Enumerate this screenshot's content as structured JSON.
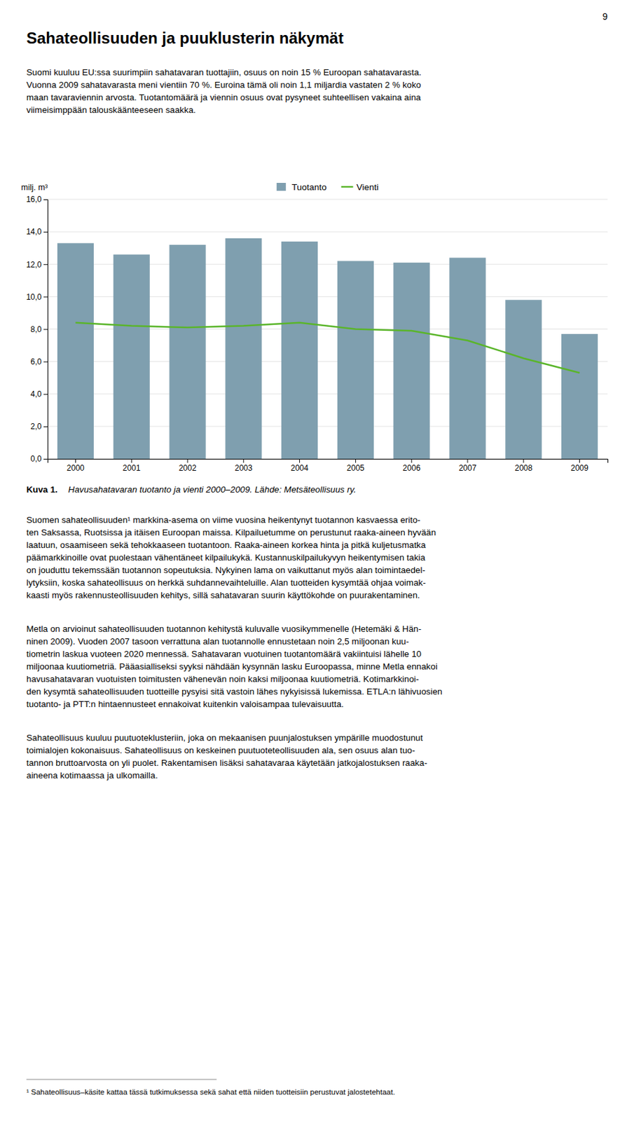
{
  "page_number": "9",
  "page_title": "Sahateollisuuden ja puuklusterin näkymät",
  "paragraphs": [
    [
      "Suomi kuuluu EU:ssa suurimpiin sahatavaran tuottajiin, osuus on noin 15 % Euroopan sahatavarasta.",
      "Vuonna 2009 sahatavarasta meni vientiin 70 %. Euroina tämä oli noin 1,1 miljardia vastaten 2 % koko",
      "maan tavaraviennin arvosta. Tuotantomäärä ja viennin osuus ovat pysyneet suhteellisen vakaina aina",
      "viimeisimppään talouskäänteeseen saakka."
    ],
    [
      "Suomen sahateollisuuden¹ markkina-asema on viime vuosina heikentynyt tuotannon kasvaessa erito-",
      "ten Saksassa, Ruotsissa ja itäisen Euroopan maissa. Kilpailuetumme on perustunut raaka-aineen hyvään",
      "laatuun, osaamiseen sekä tehokkaaseen tuotantoon. Raaka-aineen korkea hinta ja pitkä kuljetusmatka",
      "päämarkkinoille ovat puolestaan vähentäneet kilpailukykä. Kustannuskilpailukyvyn heikentymisen takia",
      "on jouduttu tekemssään tuotannon sopeutuksia. Nykyinen lama on vaikuttanut myös alan toimintaedel-",
      "lytyksiin, koska sahateollisuus on herkkä suhdannevaihteluille. Alan tuotteiden kysymtää ohjaa voimak-",
      "kaasti myös rakennusteollisuuden kehitys, sillä sahatavaran suurin käyttökohde on puurakentaminen."
    ],
    [
      "Metla on arvioinut sahateollisuuden tuotannon kehitystä kuluvalle vuosikymmenelle (Hetemäki & Hän-",
      "ninen 2009). Vuoden 2007 tasoon verrattuna alan tuotannolle ennustetaan noin 2,5 miljoonan kuu-",
      "tiometrin laskua vuoteen 2020 mennessä. Sahatavaran vuotuinen tuotantomäärä vakiintuisi lähelle 10",
      "miljoonaa kuutiometriä. Pääasialliseksi syyksi nähdään kysynnän lasku Euroopassa, minne Metla ennakoi",
      "havusahatavaran vuotuisten toimitusten vähenevän noin kaksi miljoonaa kuutiometriä. Kotimarkkinoi-",
      "den kysymtä sahateollisuuden tuotteille pysyisi sitä vastoin lähes nykyisissä lukemissa. ETLA:n lähivuosien",
      "tuotanto- ja PTT:n hintaennusteet ennakoivat kuitenkin valoisampaa tulevaisuutta."
    ],
    [
      "Sahateollisuus kuuluu puutuoteklusteriin, joka on mekaanisen puunjalostuksen ympärille muodostunut",
      "toimialojen kokonaisuus. Sahateollisuus on keskeinen puutuoteteollisuuden ala, sen osuus alan tuo-",
      "tannon bruttoarvosta on yli puolet. Rakentamisen lisäksi sahatavaraa käytetään jatkojalostuksen raaka-",
      "aineena kotimaassa ja ulkomailla."
    ]
  ],
  "caption_label": "Kuva 1.",
  "caption_text": "Havusahatavaran tuotanto ja vienti 2000–2009. Lähde: Metsäteollisuus ry.",
  "footnote": "¹  Sahateollisuus–käsite kattaa tässä tutkimuksessa sekä sahat että niiden tuotteisiin perustuvat jalostetehtaat.",
  "chart_data": {
    "type": "bar",
    "categories": [
      "2000",
      "2001",
      "2002",
      "2003",
      "2004",
      "2005",
      "2006",
      "2007",
      "2008",
      "2009"
    ],
    "series": [
      {
        "name": "Tuotanto",
        "type": "bar",
        "color": "#7f9faf",
        "values": [
          13.3,
          12.6,
          13.2,
          13.6,
          13.4,
          12.2,
          12.1,
          12.4,
          9.8,
          7.7
        ]
      },
      {
        "name": "Vienti",
        "type": "line",
        "color": "#5ab52a",
        "values": [
          8.4,
          8.2,
          8.1,
          8.2,
          8.4,
          8.0,
          7.9,
          7.3,
          6.2,
          5.3
        ]
      }
    ],
    "y_label": "milj. m³",
    "ylim": [
      0.0,
      16.0
    ],
    "yticks": [
      {
        "value": 0,
        "label": "0,0"
      },
      {
        "value": 2,
        "label": "2,0"
      },
      {
        "value": 4,
        "label": "4,0"
      },
      {
        "value": 6,
        "label": "6,0"
      },
      {
        "value": 8,
        "label": "8,0"
      },
      {
        "value": 10,
        "label": "10,0"
      },
      {
        "value": 12,
        "label": "12,0"
      },
      {
        "value": 14,
        "label": "14,0"
      },
      {
        "value": 16,
        "label": "16,0"
      }
    ],
    "grid": true,
    "legend": "top"
  }
}
